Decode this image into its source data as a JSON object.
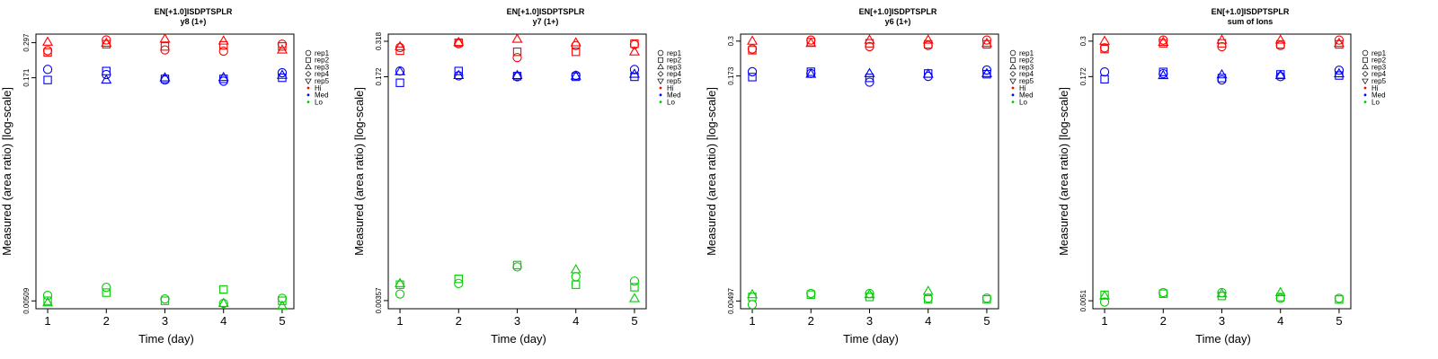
{
  "chart_data": [
    {
      "type": "scatter",
      "title": "EN[+1.0]ISDPTSPLR",
      "subtitle": "y8 (1+)",
      "xlabel": "Time (day)",
      "ylabel": "Measured (area ratio) [log-scale]",
      "x_ticks": [
        1,
        2,
        3,
        4,
        5
      ],
      "y_ticks": [
        "0.00509",
        "0.171",
        "0.297"
      ],
      "y_scale": "log",
      "ylim": [
        0.0045,
        0.34
      ],
      "xlim": [
        0.8,
        5.2
      ],
      "legend": {
        "position": "right",
        "entries": [
          "rep1",
          "rep2",
          "rep3",
          "rep4",
          "rep5",
          "Hi",
          "Med",
          "Lo"
        ]
      },
      "colors": {
        "Hi": "#ff0000",
        "Med": "#0000ff",
        "Lo": "#00cc00"
      },
      "series": [
        {
          "group": "Hi",
          "points": [
            [
              1,
              "rep3",
              0.3
            ],
            [
              1,
              "rep2",
              0.255
            ],
            [
              1,
              "rep1",
              0.262
            ],
            [
              2,
              "rep1",
              0.31
            ],
            [
              2,
              "rep3",
              0.295
            ],
            [
              2,
              "rep2",
              0.29
            ],
            [
              3,
              "rep3",
              0.315
            ],
            [
              3,
              "rep2",
              0.28
            ],
            [
              3,
              "rep1",
              0.265
            ],
            [
              4,
              "rep3",
              0.305
            ],
            [
              4,
              "rep2",
              0.285
            ],
            [
              4,
              "rep1",
              0.26
            ],
            [
              5,
              "rep1",
              0.29
            ],
            [
              5,
              "rep2",
              0.28
            ],
            [
              5,
              "rep3",
              0.265
            ]
          ]
        },
        {
          "group": "Med",
          "points": [
            [
              1,
              "rep1",
              0.195
            ],
            [
              1,
              "rep2",
              0.165
            ],
            [
              2,
              "rep2",
              0.19
            ],
            [
              2,
              "rep1",
              0.18
            ],
            [
              2,
              "rep3",
              0.165
            ],
            [
              3,
              "rep3",
              0.171
            ],
            [
              3,
              "rep1",
              0.165
            ],
            [
              3,
              "rep2",
              0.168
            ],
            [
              4,
              "rep3",
              0.172
            ],
            [
              4,
              "rep1",
              0.162
            ],
            [
              4,
              "rep2",
              0.168
            ],
            [
              5,
              "rep1",
              0.185
            ],
            [
              5,
              "rep3",
              0.178
            ],
            [
              5,
              "rep2",
              0.171
            ]
          ]
        },
        {
          "group": "Lo",
          "points": [
            [
              1,
              "rep1",
              0.00555
            ],
            [
              1,
              "rep2",
              0.0051
            ],
            [
              1,
              "rep3",
              0.00495
            ],
            [
              2,
              "rep1",
              0.0063
            ],
            [
              2,
              "rep2",
              0.0058
            ],
            [
              3,
              "rep1",
              0.00525
            ],
            [
              3,
              "rep2",
              0.0051
            ],
            [
              4,
              "rep2",
              0.0061
            ],
            [
              4,
              "rep1",
              0.0049
            ],
            [
              4,
              "rep3",
              0.0049
            ],
            [
              5,
              "rep1",
              0.0053
            ],
            [
              5,
              "rep2",
              0.0051
            ],
            [
              5,
              "rep3",
              0.0047
            ]
          ]
        }
      ]
    },
    {
      "type": "scatter",
      "title": "EN[+1.0]ISDPTSPLR",
      "subtitle": "y7 (1+)",
      "xlabel": "Time (day)",
      "ylabel": "Measured (area ratio) [log-scale]",
      "x_ticks": [
        1,
        2,
        3,
        4,
        5
      ],
      "y_ticks": [
        "0.00357",
        "0.172",
        "0.318"
      ],
      "y_scale": "log",
      "ylim": [
        0.0031,
        0.36
      ],
      "xlim": [
        0.8,
        5.2
      ],
      "legend": {
        "position": "right",
        "entries": [
          "rep1",
          "rep2",
          "rep3",
          "rep4",
          "rep5",
          "Hi",
          "Med",
          "Lo"
        ]
      },
      "colors": {
        "Hi": "#ff0000",
        "Med": "#0000ff",
        "Lo": "#00cc00"
      },
      "series": [
        {
          "group": "Hi",
          "points": [
            [
              1,
              "rep3",
              0.29
            ],
            [
              1,
              "rep2",
              0.27
            ],
            [
              1,
              "rep1",
              0.285
            ],
            [
              2,
              "rep1",
              0.305
            ],
            [
              2,
              "rep2",
              0.31
            ],
            [
              2,
              "rep3",
              0.312
            ],
            [
              3,
              "rep3",
              0.33
            ],
            [
              3,
              "rep2",
              0.265
            ],
            [
              3,
              "rep1",
              0.24
            ],
            [
              4,
              "rep3",
              0.31
            ],
            [
              4,
              "rep1",
              0.295
            ],
            [
              4,
              "rep2",
              0.265
            ],
            [
              5,
              "rep2",
              0.305
            ],
            [
              5,
              "rep1",
              0.3
            ],
            [
              5,
              "rep3",
              0.265
            ]
          ]
        },
        {
          "group": "Med",
          "points": [
            [
              1,
              "rep1",
              0.19
            ],
            [
              1,
              "rep3",
              0.188
            ],
            [
              1,
              "rep2",
              0.155
            ],
            [
              2,
              "rep2",
              0.19
            ],
            [
              2,
              "rep1",
              0.175
            ],
            [
              2,
              "rep3",
              0.176
            ],
            [
              3,
              "rep3",
              0.176
            ],
            [
              3,
              "rep1",
              0.172
            ],
            [
              3,
              "rep2",
              0.174
            ],
            [
              4,
              "rep1",
              0.176
            ],
            [
              4,
              "rep2",
              0.172
            ],
            [
              4,
              "rep3",
              0.174
            ],
            [
              5,
              "rep1",
              0.195
            ],
            [
              5,
              "rep2",
              0.172
            ],
            [
              5,
              "rep3",
              0.18
            ]
          ]
        },
        {
          "group": "Lo",
          "points": [
            [
              1,
              "rep2",
              0.0047
            ],
            [
              1,
              "rep3",
              0.0048
            ],
            [
              1,
              "rep1",
              0.004
            ],
            [
              2,
              "rep2",
              0.0052
            ],
            [
              2,
              "rep1",
              0.0048
            ],
            [
              3,
              "rep2",
              0.0066
            ],
            [
              3,
              "rep1",
              0.0064
            ],
            [
              4,
              "rep3",
              0.0061
            ],
            [
              4,
              "rep1",
              0.0054
            ],
            [
              4,
              "rep2",
              0.0047
            ],
            [
              5,
              "rep1",
              0.005
            ],
            [
              5,
              "rep2",
              0.0045
            ],
            [
              5,
              "rep3",
              0.0037
            ]
          ]
        }
      ]
    },
    {
      "type": "scatter",
      "title": "EN[+1.0]ISDPTSPLR",
      "subtitle": "y6 (1+)",
      "xlabel": "Time (day)",
      "ylabel": "Measured (area ratio) [log-scale]",
      "x_ticks": [
        1,
        2,
        3,
        4,
        5
      ],
      "y_ticks": [
        "0.00497",
        "0.173",
        "0.3"
      ],
      "y_scale": "log",
      "ylim": [
        0.0044,
        0.335
      ],
      "xlim": [
        0.8,
        5.2
      ],
      "legend": {
        "position": "right",
        "entries": [
          "rep1",
          "rep2",
          "rep3",
          "rep4",
          "rep5",
          "Hi",
          "Med",
          "Lo"
        ]
      },
      "colors": {
        "Hi": "#ff0000",
        "Med": "#0000ff",
        "Lo": "#00cc00"
      },
      "series": [
        {
          "group": "Hi",
          "points": [
            [
              1,
              "rep3",
              0.3
            ],
            [
              1,
              "rep2",
              0.26
            ],
            [
              1,
              "rep1",
              0.265
            ],
            [
              2,
              "rep1",
              0.305
            ],
            [
              2,
              "rep3",
              0.29
            ],
            [
              2,
              "rep2",
              0.295
            ],
            [
              3,
              "rep3",
              0.305
            ],
            [
              3,
              "rep2",
              0.29
            ],
            [
              3,
              "rep1",
              0.275
            ],
            [
              4,
              "rep3",
              0.305
            ],
            [
              4,
              "rep2",
              0.285
            ],
            [
              4,
              "rep1",
              0.28
            ],
            [
              5,
              "rep1",
              0.305
            ],
            [
              5,
              "rep2",
              0.285
            ],
            [
              5,
              "rep3",
              0.29
            ]
          ]
        },
        {
          "group": "Med",
          "points": [
            [
              1,
              "rep1",
              0.185
            ],
            [
              1,
              "rep2",
              0.17
            ],
            [
              2,
              "rep2",
              0.185
            ],
            [
              2,
              "rep1",
              0.18
            ],
            [
              2,
              "rep3",
              0.178
            ],
            [
              3,
              "rep3",
              0.18
            ],
            [
              3,
              "rep2",
              0.168
            ],
            [
              3,
              "rep1",
              0.157
            ],
            [
              4,
              "rep2",
              0.18
            ],
            [
              4,
              "rep1",
              0.172
            ],
            [
              4,
              "rep3",
              0.178
            ],
            [
              5,
              "rep1",
              0.19
            ],
            [
              5,
              "rep2",
              0.178
            ],
            [
              5,
              "rep3",
              0.18
            ]
          ]
        },
        {
          "group": "Lo",
          "points": [
            [
              1,
              "rep3",
              0.0055
            ],
            [
              1,
              "rep2",
              0.0053
            ],
            [
              1,
              "rep1",
              0.0047
            ],
            [
              2,
              "rep1",
              0.0056
            ],
            [
              2,
              "rep2",
              0.0055
            ],
            [
              3,
              "rep1",
              0.0056
            ],
            [
              3,
              "rep3",
              0.0055
            ],
            [
              3,
              "rep2",
              0.0053
            ],
            [
              4,
              "rep3",
              0.0058
            ],
            [
              4,
              "rep1",
              0.0052
            ],
            [
              4,
              "rep2",
              0.0051
            ],
            [
              5,
              "rep1",
              0.0052
            ],
            [
              5,
              "rep2",
              0.0051
            ]
          ]
        }
      ]
    },
    {
      "type": "scatter",
      "title": "EN[+1.0]ISDPTSPLR",
      "subtitle": "sum of Ions",
      "xlabel": "Time (day)",
      "ylabel": "Measured (area ratio) [log-scale]",
      "x_ticks": [
        1,
        2,
        3,
        4,
        5
      ],
      "y_ticks": [
        "0.0051",
        "0.172",
        "0.3"
      ],
      "y_scale": "log",
      "ylim": [
        0.0045,
        0.335
      ],
      "xlim": [
        0.8,
        5.2
      ],
      "legend": {
        "position": "right",
        "entries": [
          "rep1",
          "rep2",
          "rep3",
          "rep4",
          "rep5",
          "Hi",
          "Med",
          "Lo"
        ]
      },
      "colors": {
        "Hi": "#ff0000",
        "Med": "#0000ff",
        "Lo": "#00cc00"
      },
      "series": [
        {
          "group": "Hi",
          "points": [
            [
              1,
              "rep3",
              0.3
            ],
            [
              1,
              "rep2",
              0.265
            ],
            [
              1,
              "rep1",
              0.27
            ],
            [
              2,
              "rep1",
              0.305
            ],
            [
              2,
              "rep3",
              0.295
            ],
            [
              2,
              "rep2",
              0.29
            ],
            [
              3,
              "rep3",
              0.305
            ],
            [
              3,
              "rep2",
              0.29
            ],
            [
              3,
              "rep1",
              0.275
            ],
            [
              4,
              "rep3",
              0.305
            ],
            [
              4,
              "rep2",
              0.285
            ],
            [
              4,
              "rep1",
              0.28
            ],
            [
              5,
              "rep1",
              0.305
            ],
            [
              5,
              "rep2",
              0.285
            ],
            [
              5,
              "rep3",
              0.29
            ]
          ]
        },
        {
          "group": "Med",
          "points": [
            [
              1,
              "rep1",
              0.185
            ],
            [
              1,
              "rep2",
              0.165
            ],
            [
              2,
              "rep2",
              0.185
            ],
            [
              2,
              "rep1",
              0.18
            ],
            [
              2,
              "rep3",
              0.175
            ],
            [
              3,
              "rep3",
              0.177
            ],
            [
              3,
              "rep2",
              0.168
            ],
            [
              3,
              "rep1",
              0.163
            ],
            [
              4,
              "rep2",
              0.178
            ],
            [
              4,
              "rep1",
              0.172
            ],
            [
              4,
              "rep3",
              0.175
            ],
            [
              5,
              "rep1",
              0.19
            ],
            [
              5,
              "rep2",
              0.175
            ],
            [
              5,
              "rep3",
              0.18
            ]
          ]
        },
        {
          "group": "Lo",
          "points": [
            [
              1,
              "rep2",
              0.0056
            ],
            [
              1,
              "rep3",
              0.0055
            ],
            [
              1,
              "rep1",
              0.005
            ],
            [
              2,
              "rep1",
              0.0058
            ],
            [
              2,
              "rep2",
              0.0057
            ],
            [
              3,
              "rep1",
              0.0058
            ],
            [
              3,
              "rep3",
              0.0057
            ],
            [
              3,
              "rep2",
              0.0055
            ],
            [
              4,
              "rep3",
              0.0058
            ],
            [
              4,
              "rep2",
              0.0054
            ],
            [
              4,
              "rep1",
              0.0053
            ],
            [
              5,
              "rep1",
              0.0053
            ],
            [
              5,
              "rep2",
              0.0052
            ]
          ]
        }
      ]
    }
  ]
}
